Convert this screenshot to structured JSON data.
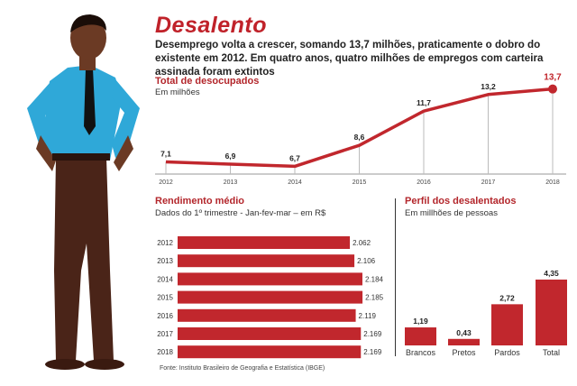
{
  "header": {
    "title": "Desalento",
    "subtitle": "Desemprego volta a crescer, somando 13,7 milhões, praticamente o dobro do existente em 2012. Em quatro anos, quatro milhões de empregos com carteira assinada foram extintos"
  },
  "colors": {
    "accent": "#c0222a",
    "bar": "#c1272d",
    "grid": "#aaaaaa"
  },
  "chart_data": [
    {
      "type": "line",
      "title": "Total de desocupados",
      "subtitle": "Em milhões",
      "x": [
        "2012",
        "2013",
        "2014",
        "2015",
        "2016",
        "2017",
        "2018"
      ],
      "values": [
        7.1,
        6.9,
        6.7,
        8.6,
        11.7,
        13.2,
        13.7
      ],
      "labels": [
        "7,1",
        "6,9",
        "6,7",
        "8,6",
        "11,7",
        "13,2",
        "13,7"
      ],
      "ylim": [
        6,
        14
      ],
      "grid": "vertical drop lines"
    },
    {
      "type": "bar",
      "orientation": "horizontal",
      "title": "Rendimento médio",
      "subtitle": "Dados do 1º trimestre - Jan-fev-mar – em R$",
      "categories": [
        "2012",
        "2013",
        "2014",
        "2015",
        "2016",
        "2017",
        "2018"
      ],
      "values": [
        2062,
        2106,
        2184,
        2185,
        2119,
        2169,
        2169
      ],
      "labels": [
        "2.062",
        "2.106",
        "2.184",
        "2.185",
        "2.119",
        "2.169",
        "2.169"
      ]
    },
    {
      "type": "bar",
      "title": "Perfil dos desalentados",
      "subtitle": "Em millhões de pessoas",
      "categories": [
        "Brancos",
        "Pretos",
        "Pardos",
        "Total"
      ],
      "values": [
        1.19,
        0.43,
        2.72,
        4.35
      ],
      "labels": [
        "1,19",
        "0,43",
        "2,72",
        "4,35"
      ]
    }
  ],
  "source": "Fonte: Instituto Brasileiro de Geografia e Estatística (IBGE)"
}
